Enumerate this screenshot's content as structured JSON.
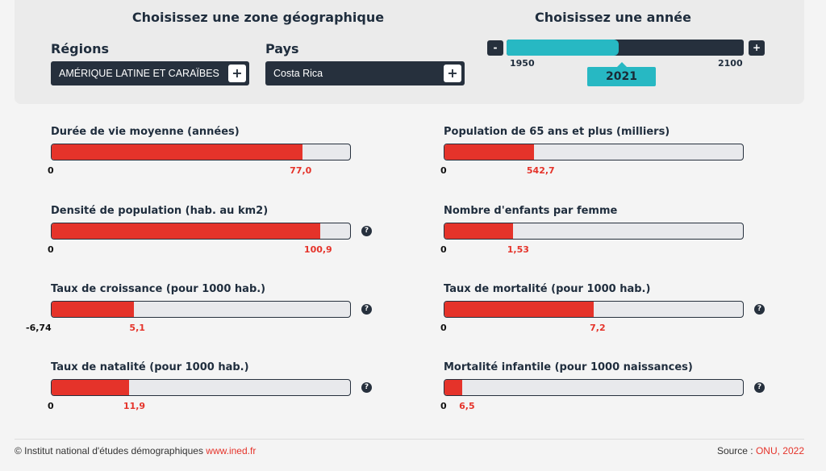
{
  "header": {
    "zone_title": "Choisissez une zone géographique",
    "year_title": "Choisissez une année",
    "regions_label": "Régions",
    "region_value": "AMÉRIQUE LATINE ET CARAÏBES",
    "pays_label": "Pays",
    "pays_value": "Costa Rica",
    "plus_glyph": "+",
    "minus_glyph": "-"
  },
  "year_slider": {
    "min": "1950",
    "max": "2100",
    "value": "2021",
    "fraction": 0.473
  },
  "indicators": [
    {
      "label": "Durée de vie moyenne (années)",
      "min": "0",
      "value": "77,0",
      "fraction": 0.84,
      "help": false
    },
    {
      "label": "Population de 65 ans et plus (milliers)",
      "min": "0",
      "value": "542,7",
      "fraction": 0.3,
      "help": false
    },
    {
      "label": "Densité de population (hab. au km2)",
      "min": "0",
      "value": "100,9",
      "fraction": 0.9,
      "help": true
    },
    {
      "label": "Nombre d'enfants par femme",
      "min": "0",
      "value": "1,53",
      "fraction": 0.23,
      "help": false
    },
    {
      "label": "Taux de croissance (pour 1000 hab.)",
      "min": "-6,74",
      "value": "5,1",
      "fraction": 0.275,
      "help": true
    },
    {
      "label": "Taux de mortalité (pour 1000 hab.)",
      "min": "0",
      "value": "7,2",
      "fraction": 0.5,
      "help": true
    },
    {
      "label": "Taux de natalité (pour 1000 hab.)",
      "min": "0",
      "value": "11,9",
      "fraction": 0.26,
      "help": true
    },
    {
      "label": "Mortalité infantile (pour 1000 naissances)",
      "min": "0",
      "value": "6,5",
      "fraction": 0.06,
      "help": true
    }
  ],
  "help_glyph": "?",
  "footer": {
    "copyright": "© Institut national d'études démographiques ",
    "site": "www.ined.fr",
    "source_prefix": "Source : ",
    "source": "ONU, 2022"
  },
  "colors": {
    "accent": "#e5332a",
    "teal": "#27b8c3",
    "dark": "#26303d"
  }
}
